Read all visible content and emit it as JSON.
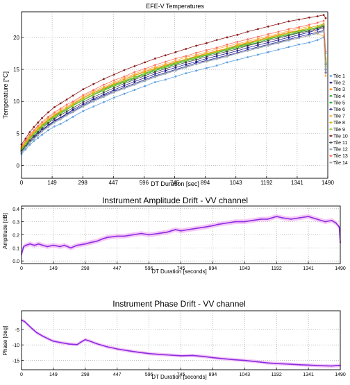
{
  "chart_data": [
    {
      "type": "line",
      "title": "EFE-V Temperatures",
      "xlabel": "DT Duration [sec]",
      "ylabel": "Temperature [°C]",
      "xlim": [
        0,
        1490
      ],
      "ylim": [
        -2,
        24
      ],
      "xticks": [
        0,
        149,
        298,
        447,
        596,
        745,
        894,
        1043,
        1192,
        1341,
        1490
      ],
      "yticks": [
        0,
        5,
        10,
        15,
        20
      ],
      "grid": true,
      "legend_position": "right",
      "x": [
        0,
        20,
        40,
        60,
        80,
        100,
        130,
        160,
        190,
        220,
        250,
        300,
        350,
        400,
        450,
        500,
        550,
        600,
        650,
        700,
        750,
        800,
        850,
        900,
        950,
        1000,
        1050,
        1100,
        1150,
        1200,
        1250,
        1300,
        1350,
        1400,
        1440,
        1470,
        1480
      ],
      "series": [
        {
          "name": "Tile 1",
          "color": "#5a9fe0",
          "values": [
            1.8,
            2.5,
            3.2,
            3.8,
            4.3,
            4.8,
            5.5,
            6.1,
            6.5,
            7.0,
            7.6,
            8.5,
            9.2,
            9.9,
            10.6,
            11.2,
            11.8,
            12.4,
            13.0,
            13.4,
            13.9,
            14.4,
            14.8,
            15.2,
            15.6,
            16.1,
            16.5,
            16.9,
            17.3,
            17.7,
            18.1,
            18.5,
            18.9,
            19.2,
            19.6,
            20.0,
            17.5
          ]
        },
        {
          "name": "Tile 2",
          "color": "#1a1a8c",
          "values": [
            2.5,
            3.1,
            3.9,
            4.5,
            5.0,
            5.6,
            6.3,
            7.0,
            7.5,
            8.1,
            8.7,
            9.6,
            10.4,
            11.1,
            11.8,
            12.5,
            13.1,
            13.7,
            14.3,
            14.8,
            15.3,
            15.8,
            16.2,
            16.7,
            17.1,
            17.5,
            17.9,
            18.4,
            18.8,
            19.2,
            19.6,
            20.0,
            20.4,
            20.8,
            21.2,
            21.5,
            15.0
          ]
        },
        {
          "name": "Tile 3",
          "color": "#ff7f0e",
          "values": [
            2.8,
            3.6,
            4.5,
            5.2,
            5.8,
            6.4,
            7.2,
            7.9,
            8.5,
            9.0,
            9.6,
            10.6,
            11.4,
            12.1,
            12.8,
            13.5,
            14.1,
            14.7,
            15.2,
            15.7,
            16.2,
            16.6,
            17.1,
            17.5,
            17.9,
            18.3,
            18.8,
            19.2,
            19.6,
            20.0,
            20.4,
            20.8,
            21.1,
            21.5,
            21.8,
            22.1,
            16.5
          ]
        },
        {
          "name": "Tile 4",
          "color": "#2ca02c",
          "values": [
            2.6,
            3.4,
            4.3,
            5.0,
            5.6,
            6.2,
            7.0,
            7.7,
            8.3,
            8.8,
            9.4,
            10.3,
            11.1,
            11.9,
            12.6,
            13.2,
            13.8,
            14.4,
            15.0,
            15.5,
            16.0,
            16.5,
            16.9,
            17.3,
            17.7,
            18.2,
            18.6,
            19.0,
            19.4,
            19.8,
            20.2,
            20.6,
            21.0,
            21.3,
            21.6,
            22.0,
            16.0
          ]
        },
        {
          "name": "Tile 5",
          "color": "#17a817",
          "values": [
            2.4,
            3.2,
            4.1,
            4.8,
            5.4,
            6.0,
            6.8,
            7.5,
            8.1,
            8.7,
            9.3,
            10.2,
            11.0,
            11.7,
            12.4,
            13.0,
            13.6,
            14.2,
            14.8,
            15.3,
            15.8,
            16.3,
            16.7,
            17.2,
            17.6,
            18.0,
            18.4,
            18.8,
            19.2,
            19.7,
            20.1,
            20.4,
            20.8,
            21.2,
            21.5,
            21.8,
            15.5
          ]
        },
        {
          "name": "Tile 6",
          "color": "#2222aa",
          "values": [
            2.2,
            2.9,
            3.7,
            4.3,
            4.9,
            5.5,
            6.2,
            6.9,
            7.4,
            8.0,
            8.5,
            9.4,
            10.2,
            10.9,
            11.6,
            12.2,
            12.8,
            13.4,
            14.0,
            14.5,
            15.0,
            15.5,
            16.0,
            16.4,
            16.8,
            17.2,
            17.6,
            18.1,
            18.5,
            18.9,
            19.3,
            19.7,
            20.1,
            20.5,
            20.8,
            21.1,
            14.5
          ]
        },
        {
          "name": "Tile 7",
          "color": "#ffae42",
          "values": [
            2.9,
            3.8,
            4.7,
            5.4,
            6.0,
            6.6,
            7.4,
            8.1,
            8.7,
            9.2,
            9.8,
            10.8,
            11.6,
            12.3,
            13.0,
            13.7,
            14.3,
            14.9,
            15.4,
            15.9,
            16.4,
            16.9,
            17.3,
            17.7,
            18.2,
            18.6,
            19.0,
            19.4,
            19.8,
            20.2,
            20.6,
            21.0,
            21.4,
            21.7,
            20.6,
            20.2,
            14.0
          ]
        },
        {
          "name": "Tile 8",
          "color": "#d4b800",
          "values": [
            2.7,
            3.5,
            4.4,
            5.1,
            5.7,
            6.3,
            7.1,
            7.8,
            8.4,
            9.0,
            9.5,
            10.5,
            11.3,
            12.0,
            12.7,
            13.3,
            14.0,
            14.6,
            15.1,
            15.6,
            16.1,
            16.6,
            17.0,
            17.4,
            17.8,
            18.3,
            18.7,
            19.1,
            19.5,
            19.9,
            20.3,
            20.7,
            21.1,
            21.5,
            21.8,
            22.1,
            16.8
          ]
        },
        {
          "name": "Tile 9",
          "color": "#9acd32",
          "values": [
            2.5,
            3.3,
            4.2,
            4.9,
            5.5,
            6.1,
            6.9,
            7.6,
            8.2,
            8.8,
            9.3,
            10.3,
            11.0,
            11.8,
            12.5,
            13.1,
            13.7,
            14.3,
            14.9,
            15.4,
            15.9,
            16.4,
            16.8,
            17.3,
            17.7,
            18.1,
            18.5,
            18.9,
            19.4,
            19.8,
            20.2,
            20.6,
            20.9,
            21.3,
            21.6,
            21.9,
            16.2
          ]
        },
        {
          "name": "Tile 10",
          "color": "#8b1a1a",
          "values": [
            3.3,
            4.2,
            5.2,
            6.0,
            6.7,
            7.4,
            8.3,
            9.1,
            9.7,
            10.3,
            10.9,
            11.9,
            12.7,
            13.5,
            14.2,
            14.9,
            15.5,
            16.1,
            16.7,
            17.2,
            17.7,
            18.2,
            18.7,
            19.1,
            19.6,
            20.0,
            20.4,
            20.9,
            21.3,
            21.7,
            22.1,
            22.5,
            22.8,
            23.1,
            23.3,
            23.5,
            23.0
          ]
        },
        {
          "name": "Tile 11",
          "color": "#444444",
          "values": [
            2.3,
            3.0,
            3.9,
            4.6,
            5.2,
            5.8,
            6.6,
            7.3,
            7.9,
            8.4,
            9.0,
            9.9,
            10.7,
            11.4,
            12.1,
            12.8,
            13.4,
            14.0,
            14.6,
            15.1,
            15.6,
            16.1,
            16.5,
            17.0,
            17.4,
            17.8,
            18.2,
            18.7,
            19.1,
            19.5,
            19.9,
            20.3,
            20.7,
            21.0,
            21.4,
            21.7,
            15.8
          ]
        },
        {
          "name": "Tile 12",
          "color": "#8aa6c1",
          "values": [
            2.0,
            2.7,
            3.5,
            4.1,
            4.7,
            5.3,
            6.0,
            6.7,
            7.2,
            7.8,
            8.3,
            9.2,
            10.0,
            10.7,
            11.4,
            12.0,
            12.6,
            13.2,
            13.8,
            14.3,
            14.8,
            15.3,
            15.8,
            16.2,
            16.6,
            17.0,
            17.5,
            17.9,
            18.3,
            18.7,
            19.1,
            19.5,
            19.9,
            20.3,
            20.6,
            20.9,
            14.8
          ]
        },
        {
          "name": "Tile 13",
          "color": "#ff6f61",
          "values": [
            3.0,
            3.9,
            4.8,
            5.5,
            6.2,
            6.8,
            7.6,
            8.3,
            8.9,
            9.5,
            10.0,
            11.0,
            11.8,
            12.6,
            13.3,
            13.9,
            14.6,
            15.1,
            15.7,
            16.2,
            16.7,
            17.1,
            17.6,
            18.0,
            18.4,
            18.9,
            19.3,
            19.7,
            20.1,
            20.5,
            20.9,
            21.3,
            21.6,
            22.0,
            22.3,
            22.6,
            17.8
          ]
        },
        {
          "name": "Tile 14",
          "color": "#a9a9a9",
          "values": [
            2.1,
            2.8,
            3.6,
            4.2,
            4.8,
            5.4,
            6.1,
            6.8,
            7.3,
            7.9,
            8.4,
            9.3,
            10.1,
            10.8,
            11.5,
            12.1,
            12.7,
            13.3,
            13.9,
            14.4,
            14.9,
            15.4,
            15.8,
            16.3,
            16.7,
            17.1,
            17.5,
            17.9,
            18.4,
            18.8,
            19.2,
            19.6,
            19.9,
            20.3,
            20.7,
            21.0,
            15.2
          ]
        }
      ]
    },
    {
      "type": "line",
      "title": "Instrument Amplitude Drift - VV channel",
      "xlabel": "DT Duration [seconds]",
      "ylabel": "Amplitude [dB]",
      "xlim": [
        0,
        1490
      ],
      "ylim": [
        -0.02,
        0.42
      ],
      "xticks": [
        0,
        149,
        298,
        447,
        596,
        745,
        894,
        1043,
        1192,
        1341,
        1490
      ],
      "yticks": [
        0.0,
        0.1,
        0.2,
        0.3,
        0.4
      ],
      "grid": true,
      "color": "#8a2be2",
      "band_color": "#f3b8f3",
      "x": [
        0,
        10,
        20,
        40,
        60,
        80,
        100,
        120,
        149,
        180,
        200,
        230,
        260,
        298,
        320,
        350,
        380,
        400,
        447,
        480,
        520,
        560,
        596,
        640,
        680,
        720,
        745,
        780,
        820,
        860,
        894,
        920,
        960,
        1000,
        1043,
        1080,
        1120,
        1150,
        1192,
        1220,
        1260,
        1300,
        1341,
        1380,
        1420,
        1450,
        1470,
        1485,
        1490
      ],
      "values": [
        0.05,
        0.11,
        0.12,
        0.13,
        0.12,
        0.13,
        0.12,
        0.11,
        0.12,
        0.11,
        0.12,
        0.1,
        0.12,
        0.13,
        0.14,
        0.15,
        0.17,
        0.18,
        0.19,
        0.19,
        0.2,
        0.21,
        0.2,
        0.21,
        0.22,
        0.24,
        0.23,
        0.24,
        0.25,
        0.26,
        0.27,
        0.28,
        0.29,
        0.3,
        0.3,
        0.31,
        0.32,
        0.32,
        0.34,
        0.33,
        0.32,
        0.33,
        0.34,
        0.32,
        0.3,
        0.31,
        0.29,
        0.26,
        0.14
      ]
    },
    {
      "type": "line",
      "title": "Instrument Phase Drift - VV channel",
      "xlabel": "DT Duration [seconds]",
      "ylabel": "Phase [deg]",
      "xlim": [
        0,
        1490
      ],
      "ylim": [
        -18,
        1
      ],
      "xticks": [
        0,
        149,
        298,
        447,
        596,
        745,
        894,
        1043,
        1192,
        1341,
        1490
      ],
      "yticks": [
        -15,
        -10,
        -5
      ],
      "grid": true,
      "color": "#8a2be2",
      "band_color": "#f3b8f3",
      "x": [
        0,
        15,
        30,
        50,
        70,
        100,
        130,
        149,
        180,
        220,
        260,
        280,
        298,
        320,
        350,
        400,
        447,
        500,
        550,
        596,
        650,
        700,
        745,
        800,
        850,
        894,
        950,
        1000,
        1043,
        1100,
        1150,
        1192,
        1250,
        1300,
        1341,
        1400,
        1450,
        1490
      ],
      "values": [
        -2.0,
        -2.5,
        -3.5,
        -4.8,
        -6.0,
        -7.2,
        -8.2,
        -8.8,
        -9.2,
        -9.7,
        -9.9,
        -9.0,
        -8.3,
        -8.8,
        -9.6,
        -10.6,
        -11.3,
        -11.9,
        -12.4,
        -12.8,
        -13.1,
        -13.3,
        -13.5,
        -13.4,
        -13.7,
        -14.1,
        -14.5,
        -14.8,
        -15.0,
        -15.4,
        -15.8,
        -16.0,
        -16.2,
        -16.4,
        -16.5,
        -16.7,
        -16.8,
        -16.6
      ]
    }
  ]
}
